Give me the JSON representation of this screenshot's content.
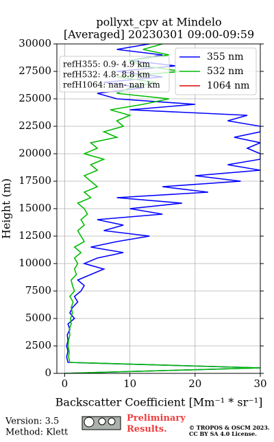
{
  "chart_data": {
    "type": "line",
    "title": "pollyxt_cpv at Mindelo",
    "subtitle": "[Averaged] 20230301 09:00-09:59",
    "x_label": "Backscatter Coefficient [Mm⁻¹ * sr⁻¹]",
    "y_label": "Height (m)",
    "xlim": [
      -1.2,
      30
    ],
    "xticks": [
      0,
      10,
      20,
      30
    ],
    "ylim": [
      0,
      30000
    ],
    "yticks": [
      0,
      2500,
      5000,
      7500,
      10000,
      12500,
      15000,
      17500,
      20000,
      22500,
      25000,
      27500,
      30000
    ],
    "grid": true,
    "legend": "upper right",
    "annotations": [
      "refH355:  0.9- 4.9 km",
      "refH532:  4.8- 8.8 km",
      "refH1064:  nan- nan km"
    ],
    "heights": [
      0,
      500,
      1000,
      1500,
      2000,
      2500,
      3000,
      3500,
      4000,
      4500,
      5000,
      5500,
      6000,
      6500,
      7000,
      7500,
      8000,
      8500,
      9000,
      9500,
      10000,
      10500,
      11000,
      11500,
      12000,
      12500,
      13000,
      13500,
      14000,
      14500,
      15000,
      15500,
      16000,
      16500,
      17000,
      17500,
      18000,
      18500,
      19000,
      19500,
      20000,
      20500,
      21000,
      21500,
      22000,
      22500,
      23000,
      23500,
      24000,
      24500,
      25000,
      25500,
      26000,
      26500,
      27000,
      27500,
      28000,
      28500,
      29000,
      29500,
      30000
    ],
    "series": [
      {
        "name": "355 nm",
        "color": "#0000ff",
        "values": [
          0,
          30,
          0.5,
          0.3,
          0.5,
          0.3,
          0.5,
          0.4,
          0.8,
          0.5,
          1.5,
          0.8,
          1.2,
          2,
          1.5,
          2.5,
          3,
          2,
          4,
          6,
          3,
          5,
          9,
          4,
          8,
          13,
          6,
          9,
          5,
          15,
          10,
          18,
          8,
          22,
          15,
          27,
          20,
          30,
          25,
          30,
          30,
          28,
          30,
          26,
          30,
          30,
          25,
          28,
          10,
          20,
          8,
          5,
          12,
          6,
          15,
          8,
          17,
          10,
          15,
          8,
          13
        ]
      },
      {
        "name": "532 nm",
        "color": "#00bb00",
        "values": [
          0,
          30,
          0.8,
          0.6,
          0.7,
          0.5,
          0.6,
          0.8,
          0.7,
          1.0,
          0.9,
          1.2,
          1.0,
          1.3,
          0.8,
          1.5,
          1.2,
          1.0,
          1.8,
          1.5,
          2,
          1.5,
          2.5,
          1.5,
          3,
          2.5,
          2,
          3,
          2.5,
          3.5,
          3,
          2,
          4,
          3,
          5,
          4,
          3,
          5,
          4,
          6,
          3,
          5,
          4,
          8,
          6,
          9,
          8,
          10,
          7,
          12,
          16,
          8,
          10,
          14,
          8,
          18,
          12,
          10,
          16,
          12,
          15
        ]
      },
      {
        "name": "1064 nm",
        "color": "#dd0000",
        "values": [
          null,
          null,
          null,
          null,
          null,
          null,
          null,
          null,
          null,
          null,
          null,
          null,
          null,
          null,
          null,
          null,
          null,
          null,
          null,
          null,
          null,
          null,
          null,
          null,
          null,
          null,
          null,
          null,
          null,
          null,
          null,
          null,
          null,
          null,
          null,
          null,
          null,
          null,
          null,
          null,
          null,
          null,
          null,
          null,
          null,
          null,
          null,
          null,
          null,
          null,
          null,
          null,
          null,
          null,
          null,
          null,
          null,
          null,
          null,
          null,
          null
        ]
      }
    ]
  },
  "footer": {
    "version": "Version: 3.5",
    "method": "Method: Klett",
    "status": "Preliminary Results.",
    "copyright": "© TROPOS & OSCM 2023.",
    "license": "CC BY SA 4.0 License."
  }
}
